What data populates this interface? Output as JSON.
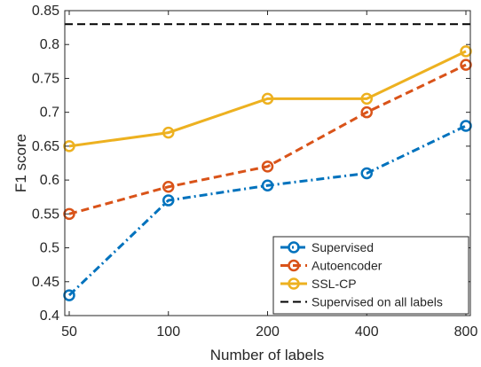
{
  "chart_data": {
    "type": "line",
    "title": "",
    "xlabel": "Number of labels",
    "ylabel": "F1 score",
    "categories": [
      "50",
      "100",
      "200",
      "400",
      "800"
    ],
    "ylim": [
      0.4,
      0.85
    ],
    "yticks": [
      "0.4",
      "0.45",
      "0.5",
      "0.55",
      "0.6",
      "0.65",
      "0.7",
      "0.75",
      "0.8",
      "0.85"
    ],
    "grid": false,
    "legend_position": "bottom-right",
    "series": [
      {
        "name": "Supervised",
        "values": [
          0.43,
          0.57,
          0.592,
          0.61,
          0.68
        ],
        "color": "#0072BD",
        "dash": "dashdot",
        "marker": "circle"
      },
      {
        "name": "Autoencoder",
        "values": [
          0.55,
          0.59,
          0.62,
          0.7,
          0.77
        ],
        "color": "#D95319",
        "dash": "dashed",
        "marker": "circle"
      },
      {
        "name": "SSL-CP",
        "values": [
          0.65,
          0.67,
          0.72,
          0.72,
          0.79
        ],
        "color": "#EDB120",
        "dash": "solid",
        "marker": "circle"
      },
      {
        "name": "Supervised on all labels",
        "values": [
          0.83,
          0.83,
          0.83,
          0.83,
          0.83
        ],
        "color": "#000000",
        "dash": "dashed",
        "marker": "none",
        "span": "full"
      }
    ]
  }
}
